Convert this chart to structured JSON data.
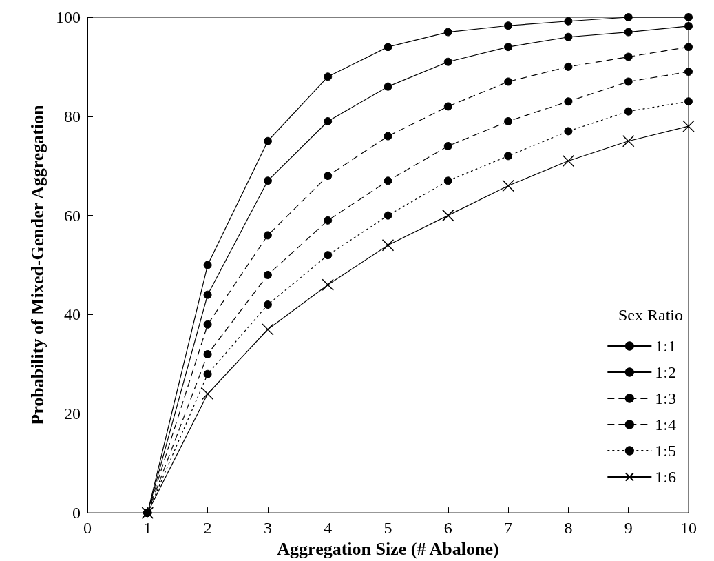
{
  "chart_data": {
    "type": "line",
    "xlabel": "Aggregation Size (# Abalone)",
    "ylabel": "Probability of Mixed-Gender Aggregation",
    "legend_title": "Sex Ratio",
    "legend": "bottom right",
    "grid": false,
    "x": [
      1,
      2,
      3,
      4,
      5,
      6,
      7,
      8,
      9,
      10
    ],
    "xlim": [
      0,
      10
    ],
    "xticks": [
      0,
      1,
      2,
      3,
      4,
      5,
      6,
      7,
      8,
      9,
      10
    ],
    "ylim": [
      0,
      100
    ],
    "yticks": [
      0,
      20,
      40,
      60,
      80,
      100
    ],
    "series": [
      {
        "name": "1:1",
        "color": "#000000",
        "marker": "circle",
        "line_style": "solid",
        "values": [
          0,
          50,
          75,
          88,
          94,
          97,
          98.3,
          99.2,
          100,
          100
        ]
      },
      {
        "name": "1:2",
        "color": "#000000",
        "marker": "circle",
        "line_style": "solid",
        "values": [
          0,
          44,
          67,
          79,
          86,
          91,
          94,
          96,
          97,
          98.2
        ]
      },
      {
        "name": "1:3",
        "color": "#000000",
        "marker": "circle",
        "line_style": "dashed",
        "values": [
          0,
          38,
          56,
          68,
          76,
          82,
          87,
          90,
          92,
          94
        ]
      },
      {
        "name": "1:4",
        "color": "#000000",
        "marker": "circle",
        "line_style": "dashed",
        "values": [
          0,
          32,
          48,
          59,
          67,
          74,
          79,
          83,
          87,
          89
        ]
      },
      {
        "name": "1:5",
        "color": "#000000",
        "marker": "circle",
        "line_style": "dotted",
        "values": [
          0,
          28,
          42,
          52,
          60,
          67,
          72,
          77,
          81,
          83
        ]
      },
      {
        "name": "1:6",
        "color": "#000000",
        "marker": "cross",
        "line_style": "solid",
        "values": [
          0,
          24,
          37,
          46,
          54,
          60,
          66,
          71,
          75,
          78
        ]
      }
    ]
  }
}
